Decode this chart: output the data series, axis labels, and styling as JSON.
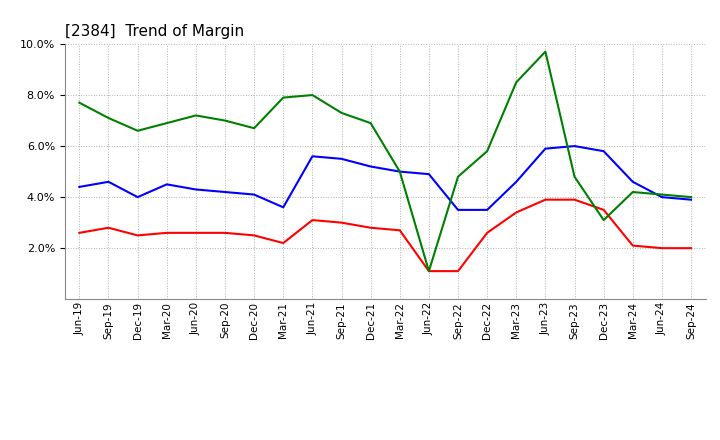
{
  "title": "[2384]  Trend of Margin",
  "x_labels": [
    "Jun-19",
    "Sep-19",
    "Dec-19",
    "Mar-20",
    "Jun-20",
    "Sep-20",
    "Dec-20",
    "Mar-21",
    "Jun-21",
    "Sep-21",
    "Dec-21",
    "Mar-22",
    "Jun-22",
    "Sep-22",
    "Dec-22",
    "Mar-23",
    "Jun-23",
    "Sep-23",
    "Dec-23",
    "Mar-24",
    "Jun-24",
    "Sep-24"
  ],
  "ordinary_income": [
    4.4,
    4.6,
    4.0,
    4.5,
    4.3,
    4.2,
    4.1,
    3.6,
    5.6,
    5.5,
    5.2,
    5.0,
    4.9,
    3.5,
    3.5,
    4.6,
    5.9,
    6.0,
    5.8,
    4.6,
    4.0,
    3.9
  ],
  "net_income": [
    2.6,
    2.8,
    2.5,
    2.6,
    2.6,
    2.6,
    2.5,
    2.2,
    3.1,
    3.0,
    2.8,
    2.7,
    1.1,
    1.1,
    2.6,
    3.4,
    3.9,
    3.9,
    3.5,
    2.1,
    2.0,
    2.0
  ],
  "operating_cashflow": [
    7.7,
    7.1,
    6.6,
    6.9,
    7.2,
    7.0,
    6.7,
    7.9,
    8.0,
    7.3,
    6.9,
    5.0,
    1.1,
    4.8,
    5.8,
    8.5,
    9.7,
    4.8,
    3.1,
    4.2,
    4.1,
    4.0
  ],
  "colors": {
    "ordinary_income": "#0000ff",
    "net_income": "#ff0000",
    "operating_cashflow": "#008000"
  },
  "ylim": [
    0.0,
    10.0
  ],
  "yticks": [
    2.0,
    4.0,
    6.0,
    8.0,
    10.0
  ],
  "background_color": "#ffffff",
  "grid_color": "#b0b0b0",
  "title_fontsize": 11
}
